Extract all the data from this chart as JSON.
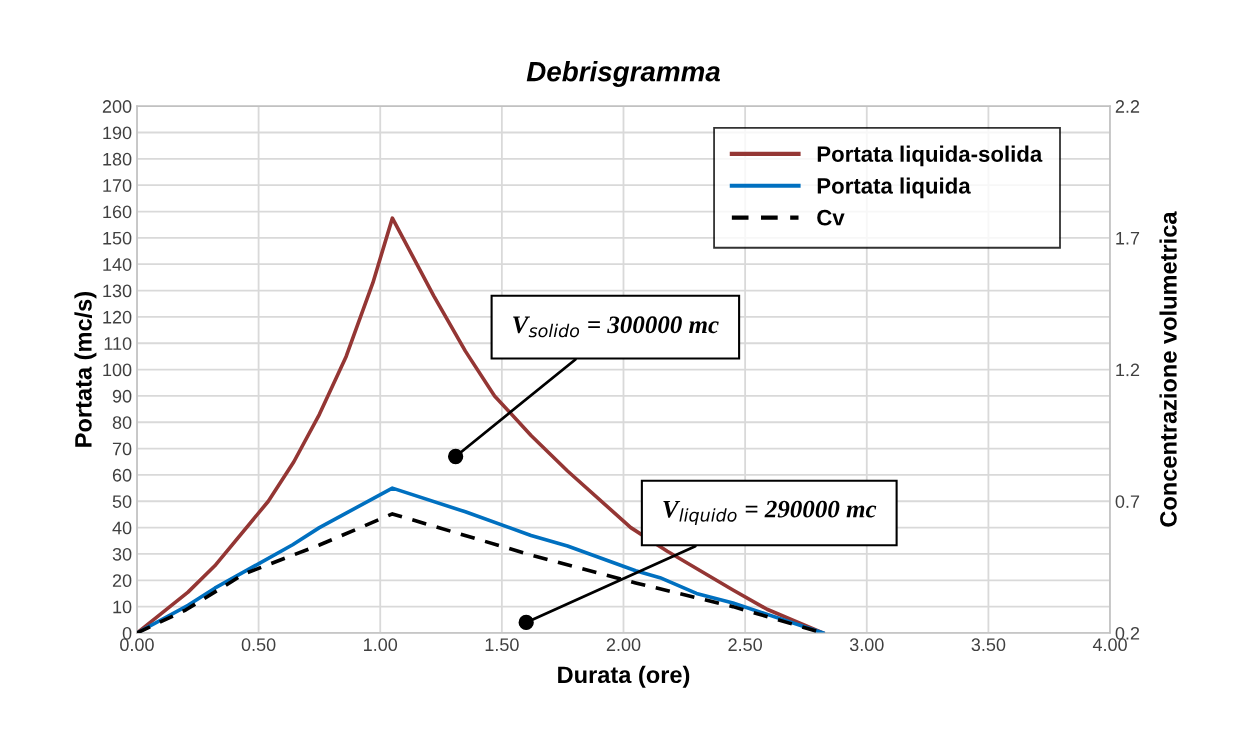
{
  "chart_data": {
    "type": "line",
    "title": "Debrisgramma",
    "xlabel": "Durata (ore)",
    "ylabel": "Portata (mc/s)",
    "y2label": "Concentrazione volumetrica",
    "series": [
      {
        "name": "Portata liquida-solida",
        "color": "#943634",
        "x": [
          0,
          0.21,
          0.32,
          0.54,
          0.645,
          0.75,
          0.86,
          0.97,
          1.05,
          1.22,
          1.35,
          1.47,
          1.62,
          1.77,
          2.03,
          2.18,
          2.45,
          2.59,
          2.82
        ],
        "values": [
          0,
          15.5,
          25.5,
          50,
          65,
          83,
          105,
          133,
          157.5,
          128,
          107,
          90,
          75,
          61.5,
          40,
          31,
          16.3,
          9,
          0
        ]
      },
      {
        "name": "Portata liquida",
        "color": "#0070c0",
        "x": [
          0,
          0.21,
          0.32,
          0.64,
          0.75,
          0.86,
          1.05,
          1.35,
          1.62,
          1.77,
          2.05,
          2.15,
          2.3,
          2.45,
          2.82
        ],
        "values": [
          0,
          10.5,
          17,
          33.5,
          40,
          45.5,
          55,
          46,
          37,
          33,
          23.6,
          21,
          15,
          11.4,
          0
        ]
      },
      {
        "name": "Cv",
        "color": "#000000",
        "axis": "y2",
        "line_style": "dashed",
        "x": [
          0,
          0.2,
          0.44,
          0.75,
          1.05,
          1.62,
          2.05,
          2.45,
          2.82
        ],
        "values": [
          0.2,
          0.287,
          0.424,
          0.534,
          0.652,
          0.496,
          0.39,
          0.3,
          0.2
        ]
      }
    ],
    "xlim": [
      0,
      4
    ],
    "xticks": [
      {
        "value": 0,
        "label": "0.00"
      },
      {
        "value": 0.5,
        "label": "0.50"
      },
      {
        "value": 1,
        "label": "1.00"
      },
      {
        "value": 1.5,
        "label": "1.50"
      },
      {
        "value": 2,
        "label": "2.00"
      },
      {
        "value": 2.5,
        "label": "2.50"
      },
      {
        "value": 3,
        "label": "3.00"
      },
      {
        "value": 3.5,
        "label": "3.50"
      },
      {
        "value": 4,
        "label": "4.00"
      }
    ],
    "ylim": [
      0,
      200
    ],
    "yticks": [
      0,
      10,
      20,
      30,
      40,
      50,
      60,
      70,
      80,
      90,
      100,
      110,
      120,
      130,
      140,
      150,
      160,
      170,
      180,
      190,
      200
    ],
    "y2lim": [
      0.2,
      2.2
    ],
    "y2ticks": [
      0.2,
      0.7,
      1.2,
      1.7,
      2.2
    ],
    "annotations": [
      {
        "text": "V$_{solido}$ = 300000 mc",
        "x": 1.31,
        "y": 67
      },
      {
        "text": "V$_{liquido}$ = 290000 mc",
        "x": 1.6,
        "y": 4
      }
    ],
    "grid": true,
    "legend": "top right",
    "marker": "none",
    "line_style": "solid"
  }
}
